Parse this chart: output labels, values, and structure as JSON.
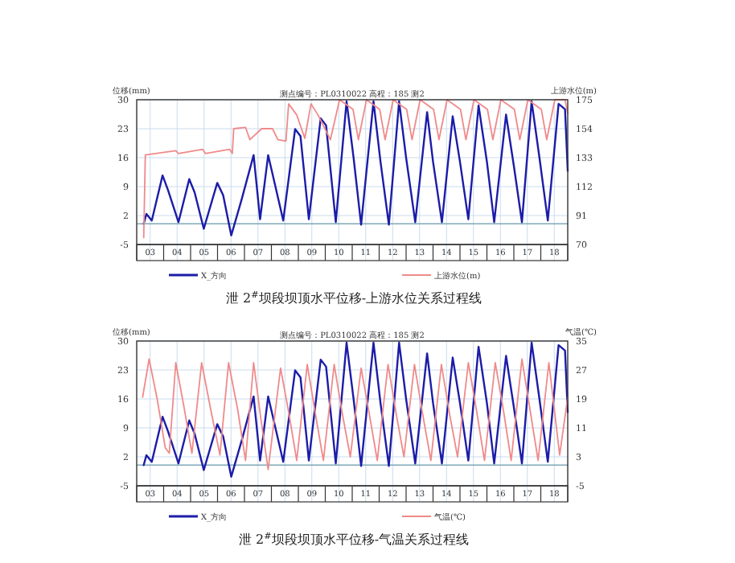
{
  "chart_data": [
    {
      "type": "line",
      "title": "泄 2$^{#}$坝段坝顶水平位移-上游水位关系过程线",
      "subtitle": "测点编号：PL0310022 高程：185 测2",
      "ylabel": "位移(mm)",
      "y2label": "上游水位(m)",
      "xlim": [
        2.5,
        18.5
      ],
      "xticks": [
        {
          "value": 2.5,
          "label": null
        },
        {
          "value": 3,
          "label": "03"
        },
        {
          "value": 3.5,
          "label": null
        },
        {
          "value": 4,
          "label": "04"
        },
        {
          "value": 4.5,
          "label": null
        },
        {
          "value": 5,
          "label": "05"
        },
        {
          "value": 5.5,
          "label": null
        },
        {
          "value": 6,
          "label": "06"
        },
        {
          "value": 6.5,
          "label": null
        },
        {
          "value": 7,
          "label": "07"
        },
        {
          "value": 7.5,
          "label": null
        },
        {
          "value": 8,
          "label": "08"
        },
        {
          "value": 8.5,
          "label": null
        },
        {
          "value": 9,
          "label": "09"
        },
        {
          "value": 9.5,
          "label": null
        },
        {
          "value": 10,
          "label": "10"
        },
        {
          "value": 10.5,
          "label": null
        },
        {
          "value": 11,
          "label": "11"
        },
        {
          "value": 11.5,
          "label": null
        },
        {
          "value": 12,
          "label": "12"
        },
        {
          "value": 12.5,
          "label": null
        },
        {
          "value": 13,
          "label": "13"
        },
        {
          "value": 13.5,
          "label": null
        },
        {
          "value": 14,
          "label": "14"
        },
        {
          "value": 14.5,
          "label": null
        },
        {
          "value": 15,
          "label": "15"
        },
        {
          "value": 15.5,
          "label": null
        },
        {
          "value": 16,
          "label": "16"
        },
        {
          "value": 16.5,
          "label": null
        },
        {
          "value": 17,
          "label": "17"
        },
        {
          "value": 17.5,
          "label": null
        },
        {
          "value": 18,
          "label": "18"
        },
        {
          "value": 18.5,
          "label": null
        }
      ],
      "ylim": [
        -5,
        30
      ],
      "yticks": [
        -5,
        2,
        9,
        16,
        23,
        30
      ],
      "y2lim": [
        70,
        175
      ],
      "y2ticks": [
        70,
        91,
        112,
        133,
        154,
        175
      ],
      "grid": true,
      "legend": "bottom",
      "marker": "none",
      "line_style": "solid",
      "ref_lines": [
        {
          "axis": "y",
          "value": 0,
          "label": null,
          "color": "#7fa8b8"
        }
      ],
      "series": [
        {
          "name": "X_方向",
          "color": "#1c1ca8",
          "x": [
            2.76,
            2.86,
            3.06,
            3.46,
            3.66,
            4.05,
            4.45,
            4.65,
            4.99,
            5.49,
            5.71,
            6.01,
            6.4,
            6.84,
            7.08,
            7.38,
            7.65,
            7.94,
            8.38,
            8.58,
            8.89,
            9.33,
            9.53,
            9.89,
            10.29,
            10.55,
            10.83,
            11.29,
            11.55,
            11.86,
            12.24,
            12.5,
            12.84,
            13.28,
            13.5,
            13.83,
            14.23,
            14.5,
            14.81,
            15.19,
            15.5,
            15.77,
            16.21,
            16.5,
            16.8,
            17.16,
            17.45,
            17.76,
            18.16,
            18.4,
            18.5
          ],
          "values": [
            0,
            2.4,
            0.8,
            11.7,
            8.2,
            0.4,
            10.8,
            7.6,
            -1.2,
            9.9,
            6.9,
            -2.8,
            6,
            16.6,
            1.1,
            16.6,
            9,
            0.8,
            22.9,
            21.2,
            1.1,
            25.5,
            23.8,
            0.4,
            29.6,
            16,
            -0.2,
            29.6,
            15,
            -0.2,
            29.6,
            16,
            0.4,
            27,
            15,
            0.4,
            26,
            15,
            1.1,
            28.6,
            15,
            0.4,
            26.4,
            14,
            0.4,
            29.6,
            16,
            0.8,
            29,
            27.7,
            12.8
          ]
        },
        {
          "name": "上游水位(m)",
          "color": "#f08a8a",
          "axis": "y2",
          "x": [
            2.76,
            2.82,
            3.95,
            4.05,
            4.95,
            5.05,
            5.95,
            6.05,
            6.1,
            6.54,
            6.7,
            7.14,
            7.54,
            7.74,
            8.04,
            8.14,
            8.44,
            8.74,
            8.97,
            9.23,
            9.69,
            10.03,
            10.53,
            10.73,
            11.03,
            11.52,
            11.72,
            12.02,
            12.52,
            12.72,
            13.02,
            13.52,
            13.72,
            14.02,
            14.52,
            14.72,
            15.02,
            15.52,
            15.72,
            16.02,
            16.52,
            16.72,
            17.02,
            17.52,
            17.72,
            18.02,
            18.4,
            18.5
          ],
          "values": [
            75,
            135,
            138,
            136,
            139,
            136,
            139,
            136,
            154,
            155,
            146,
            154,
            154,
            146,
            145,
            172,
            164,
            147,
            172,
            164,
            146,
            175,
            168,
            146,
            175,
            168,
            146,
            175,
            168,
            146,
            175,
            168,
            146,
            175,
            168,
            146,
            175,
            168,
            146,
            175,
            168,
            146,
            175,
            168,
            146,
            175,
            175,
            165
          ]
        }
      ]
    },
    {
      "type": "line",
      "title": "泄 2$^{#}$坝段坝顶水平位移-气温关系过程线",
      "subtitle": "测点编号：PL0310022 高程：185 测2",
      "ylabel": "位移(mm)",
      "y2label": "气温(℃)",
      "xlim": [
        2.5,
        18.5
      ],
      "xticks": [
        {
          "value": 2.5,
          "label": null
        },
        {
          "value": 3,
          "label": "03"
        },
        {
          "value": 3.5,
          "label": null
        },
        {
          "value": 4,
          "label": "04"
        },
        {
          "value": 4.5,
          "label": null
        },
        {
          "value": 5,
          "label": "05"
        },
        {
          "value": 5.5,
          "label": null
        },
        {
          "value": 6,
          "label": "06"
        },
        {
          "value": 6.5,
          "label": null
        },
        {
          "value": 7,
          "label": "07"
        },
        {
          "value": 7.5,
          "label": null
        },
        {
          "value": 8,
          "label": "08"
        },
        {
          "value": 8.5,
          "label": null
        },
        {
          "value": 9,
          "label": "09"
        },
        {
          "value": 9.5,
          "label": null
        },
        {
          "value": 10,
          "label": "10"
        },
        {
          "value": 10.5,
          "label": null
        },
        {
          "value": 11,
          "label": "11"
        },
        {
          "value": 11.5,
          "label": null
        },
        {
          "value": 12,
          "label": "12"
        },
        {
          "value": 12.5,
          "label": null
        },
        {
          "value": 13,
          "label": "13"
        },
        {
          "value": 13.5,
          "label": null
        },
        {
          "value": 14,
          "label": "14"
        },
        {
          "value": 14.5,
          "label": null
        },
        {
          "value": 15,
          "label": "15"
        },
        {
          "value": 15.5,
          "label": null
        },
        {
          "value": 16,
          "label": "16"
        },
        {
          "value": 16.5,
          "label": null
        },
        {
          "value": 17,
          "label": "17"
        },
        {
          "value": 17.5,
          "label": null
        },
        {
          "value": 18,
          "label": "18"
        },
        {
          "value": 18.5,
          "label": null
        }
      ],
      "ylim": [
        -5,
        30
      ],
      "yticks": [
        -5,
        2,
        9,
        16,
        23,
        30
      ],
      "y2lim": [
        -5,
        35
      ],
      "y2ticks": [
        -5,
        3,
        11,
        19,
        27,
        35
      ],
      "grid": true,
      "legend": "bottom",
      "marker": "none",
      "line_style": "solid",
      "ref_lines": [
        {
          "axis": "y",
          "value": 0,
          "label": null,
          "color": "#7fa8b8"
        }
      ],
      "series": [
        {
          "name": "X_方向",
          "color": "#1c1ca8",
          "x": [
            2.76,
            2.86,
            3.06,
            3.46,
            3.66,
            4.05,
            4.45,
            4.65,
            4.99,
            5.49,
            5.71,
            6.01,
            6.4,
            6.84,
            7.08,
            7.38,
            7.65,
            7.94,
            8.38,
            8.58,
            8.89,
            9.33,
            9.53,
            9.89,
            10.29,
            10.55,
            10.83,
            11.29,
            11.55,
            11.86,
            12.24,
            12.5,
            12.84,
            13.28,
            13.5,
            13.83,
            14.23,
            14.5,
            14.81,
            15.19,
            15.5,
            15.77,
            16.21,
            16.5,
            16.8,
            17.16,
            17.45,
            17.76,
            18.16,
            18.4,
            18.5
          ],
          "values": [
            0,
            2.4,
            0.8,
            11.7,
            8.2,
            0.4,
            10.8,
            7.6,
            -1.2,
            9.9,
            6.9,
            -2.8,
            6,
            16.6,
            1.1,
            16.6,
            9,
            0.8,
            22.9,
            21.2,
            1.1,
            25.5,
            23.8,
            0.4,
            29.6,
            16,
            -0.2,
            29.6,
            15,
            -0.2,
            29.6,
            16,
            0.4,
            27,
            15,
            0.4,
            26,
            15,
            1.1,
            28.6,
            15,
            0.4,
            26.4,
            14,
            0.4,
            29.6,
            16,
            0.8,
            29,
            27.7,
            12.8
          ]
        },
        {
          "name": "气温(℃)",
          "color": "#f08a8a",
          "axis": "y2",
          "x": [
            2.72,
            2.96,
            3.26,
            3.56,
            3.71,
            3.95,
            4.25,
            4.55,
            4.91,
            5.25,
            5.59,
            5.91,
            6.25,
            6.54,
            6.84,
            7.1,
            7.38,
            7.84,
            8.15,
            8.44,
            8.83,
            9.13,
            9.43,
            9.83,
            10.13,
            10.43,
            10.83,
            11.13,
            11.43,
            11.83,
            12.13,
            12.42,
            12.81,
            13.11,
            13.42,
            13.81,
            14.11,
            14.41,
            14.81,
            15.11,
            15.41,
            15.81,
            16.11,
            16.4,
            16.8,
            17.1,
            17.4,
            17.8,
            18.2,
            18.5
          ],
          "values": [
            19.5,
            30,
            19,
            5.5,
            4,
            29,
            17,
            4,
            29,
            16,
            3.5,
            29,
            16,
            2,
            29,
            14,
            -0.5,
            27.5,
            15,
            2,
            28.5,
            15,
            2,
            28.5,
            15,
            3,
            27.5,
            15,
            2,
            28.5,
            15,
            3,
            28.5,
            15,
            2,
            28.5,
            15,
            3,
            29,
            16,
            2,
            29,
            16,
            2,
            30,
            16,
            2,
            29,
            3.5,
            19.5
          ]
        }
      ]
    }
  ]
}
